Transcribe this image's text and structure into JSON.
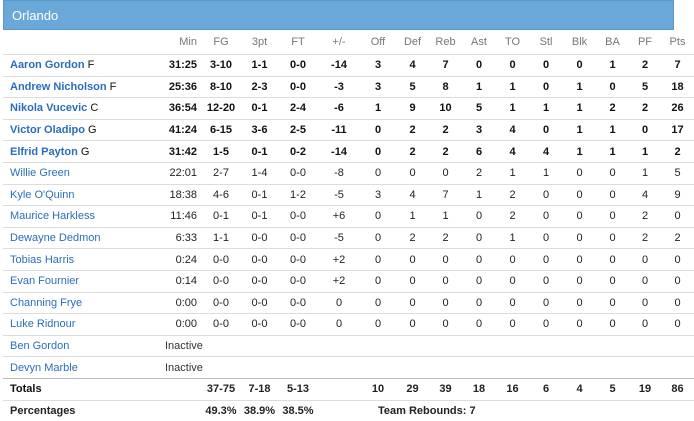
{
  "team": "Orlando",
  "columns": [
    "Min",
    "FG",
    "3pt",
    "FT",
    "+/-",
    "Off",
    "Def",
    "Reb",
    "Ast",
    "TO",
    "Stl",
    "Blk",
    "BA",
    "PF",
    "Pts"
  ],
  "starters": [
    {
      "name": "Aaron Gordon",
      "pos": "F",
      "stats": [
        "31:25",
        "3-10",
        "1-1",
        "0-0",
        "-14",
        "3",
        "4",
        "7",
        "0",
        "0",
        "0",
        "0",
        "1",
        "2",
        "7"
      ]
    },
    {
      "name": "Andrew Nicholson",
      "pos": "F",
      "stats": [
        "25:36",
        "8-10",
        "2-3",
        "0-0",
        "-3",
        "3",
        "5",
        "8",
        "1",
        "1",
        "0",
        "1",
        "0",
        "5",
        "18"
      ]
    },
    {
      "name": "Nikola Vucevic",
      "pos": "C",
      "stats": [
        "36:54",
        "12-20",
        "0-1",
        "2-4",
        "-6",
        "1",
        "9",
        "10",
        "5",
        "1",
        "1",
        "1",
        "2",
        "2",
        "26"
      ]
    },
    {
      "name": "Victor Oladipo",
      "pos": "G",
      "stats": [
        "41:24",
        "6-15",
        "3-6",
        "2-5",
        "-11",
        "0",
        "2",
        "2",
        "3",
        "4",
        "0",
        "1",
        "1",
        "0",
        "17"
      ]
    },
    {
      "name": "Elfrid Payton",
      "pos": "G",
      "stats": [
        "31:42",
        "1-5",
        "0-1",
        "0-2",
        "-14",
        "0",
        "2",
        "2",
        "6",
        "4",
        "4",
        "1",
        "1",
        "1",
        "2"
      ]
    }
  ],
  "bench": [
    {
      "name": "Willie Green",
      "stats": [
        "22:01",
        "2-7",
        "1-4",
        "0-0",
        "-8",
        "0",
        "0",
        "0",
        "2",
        "1",
        "1",
        "0",
        "0",
        "1",
        "5"
      ]
    },
    {
      "name": "Kyle O'Quinn",
      "stats": [
        "18:38",
        "4-6",
        "0-1",
        "1-2",
        "-5",
        "3",
        "4",
        "7",
        "1",
        "2",
        "0",
        "0",
        "0",
        "4",
        "9"
      ]
    },
    {
      "name": "Maurice Harkless",
      "stats": [
        "11:46",
        "0-1",
        "0-1",
        "0-0",
        "+6",
        "0",
        "1",
        "1",
        "0",
        "2",
        "0",
        "0",
        "0",
        "2",
        "0"
      ]
    },
    {
      "name": "Dewayne Dedmon",
      "stats": [
        "6:33",
        "1-1",
        "0-0",
        "0-0",
        "-5",
        "0",
        "2",
        "2",
        "0",
        "1",
        "0",
        "0",
        "0",
        "2",
        "2"
      ]
    },
    {
      "name": "Tobias Harris",
      "stats": [
        "0:24",
        "0-0",
        "0-0",
        "0-0",
        "+2",
        "0",
        "0",
        "0",
        "0",
        "0",
        "0",
        "0",
        "0",
        "0",
        "0"
      ]
    },
    {
      "name": "Evan Fournier",
      "stats": [
        "0:14",
        "0-0",
        "0-0",
        "0-0",
        "+2",
        "0",
        "0",
        "0",
        "0",
        "0",
        "0",
        "0",
        "0",
        "0",
        "0"
      ]
    },
    {
      "name": "Channing Frye",
      "stats": [
        "0:00",
        "0-0",
        "0-0",
        "0-0",
        "0",
        "0",
        "0",
        "0",
        "0",
        "0",
        "0",
        "0",
        "0",
        "0",
        "0"
      ]
    },
    {
      "name": "Luke Ridnour",
      "stats": [
        "0:00",
        "0-0",
        "0-0",
        "0-0",
        "0",
        "0",
        "0",
        "0",
        "0",
        "0",
        "0",
        "0",
        "0",
        "0",
        "0"
      ]
    }
  ],
  "inactive": [
    {
      "name": "Ben Gordon",
      "status": "Inactive"
    },
    {
      "name": "Devyn Marble",
      "status": "Inactive"
    }
  ],
  "totals": {
    "label": "Totals",
    "stats": [
      "",
      "37-75",
      "7-18",
      "5-13",
      "",
      "10",
      "29",
      "39",
      "18",
      "16",
      "6",
      "4",
      "5",
      "19",
      "86"
    ]
  },
  "percentages": {
    "label": "Percentages",
    "fg": "49.3%",
    "three": "38.9%",
    "ft": "38.5%",
    "team_rebounds": "Team Rebounds: 7"
  }
}
